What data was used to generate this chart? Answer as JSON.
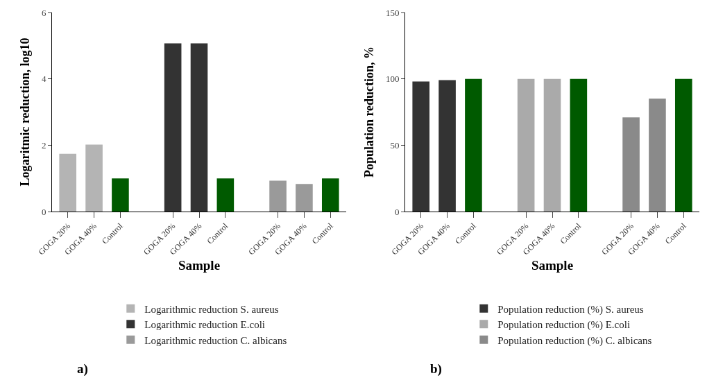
{
  "chart_data": [
    {
      "type": "bar",
      "ylabel": "Logaritmic reduction, log10",
      "xlabel": "Sample",
      "legend": "bottom",
      "annotations": [
        "a)"
      ],
      "categories": [
        "GOGA 20%",
        "GOGA 40%",
        "Control",
        null,
        "GOGA 20%",
        "GOGA 40%",
        "Control",
        null,
        "GOGA 20%",
        "GOGA 40%",
        "Control"
      ],
      "ylim": [
        0,
        6
      ],
      "yticks": [
        0,
        2,
        4,
        6
      ],
      "series": [
        {
          "name": "Logarithmic reduction S. aureus",
          "color": "#b4b4b4",
          "values": [
            1.74,
            2.02,
            null,
            null,
            null,
            null,
            null,
            null,
            null,
            null,
            null
          ]
        },
        {
          "name": "Logarithmic reduction E.coli",
          "color": "#333333",
          "values": [
            null,
            null,
            null,
            null,
            5.07,
            5.07,
            null,
            null,
            null,
            null,
            null
          ]
        },
        {
          "name": "Logarithmic reduction C. albicans",
          "color": "#9a9a9a",
          "values": [
            null,
            null,
            null,
            null,
            null,
            null,
            null,
            null,
            0.93,
            0.83,
            null
          ]
        },
        {
          "color": "#005a00",
          "values": [
            null,
            null,
            1,
            null,
            null,
            null,
            1,
            null,
            null,
            null,
            1
          ]
        }
      ]
    },
    {
      "type": "bar",
      "ylabel": "Population reduction, %",
      "xlabel": "Sample",
      "legend": "bottom",
      "annotations": [
        "b)"
      ],
      "categories": [
        "GOGA 20%",
        "GOGA 40%",
        "Control",
        null,
        "GOGA 20%",
        "GOGA 40%",
        "Control",
        null,
        "GOGA 20%",
        "GOGA 40%",
        "Control"
      ],
      "ylim": [
        0,
        150
      ],
      "yticks": [
        0,
        50,
        100,
        150
      ],
      "series": [
        {
          "name": "Population reduction (%) S. aureus",
          "color": "#333333",
          "values": [
            98,
            99,
            null,
            null,
            null,
            null,
            null,
            null,
            null,
            null,
            null
          ]
        },
        {
          "name": "Population reduction (%) E.coli",
          "color": "#aaaaaa",
          "values": [
            null,
            null,
            null,
            null,
            100,
            100,
            null,
            null,
            null,
            null,
            null
          ]
        },
        {
          "name": "Population reduction (%) C. albicans",
          "color": "#8a8a8a",
          "values": [
            null,
            null,
            null,
            null,
            null,
            null,
            null,
            null,
            71,
            85,
            null
          ]
        },
        {
          "color": "#005a00",
          "values": [
            null,
            null,
            100,
            null,
            null,
            null,
            100,
            null,
            null,
            null,
            100
          ]
        }
      ]
    }
  ]
}
